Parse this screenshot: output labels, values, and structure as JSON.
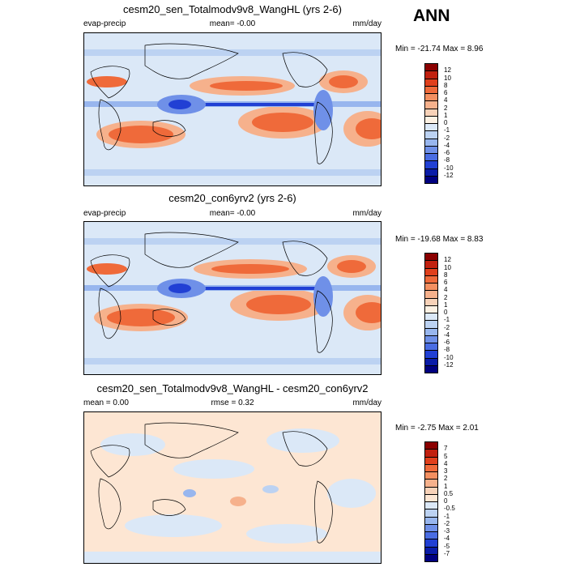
{
  "season": "ANN",
  "panels": [
    {
      "title": "cesm20_sen_Totalmodv9v8_WangHL (yrs 2-6)",
      "left_label": "evap-precip",
      "stat_label": "mean=  -0.00",
      "units": "mm/day",
      "minmax": "Min = -21.74 Max =  8.96",
      "colorbar": {
        "labels": [
          "12",
          "10",
          "8",
          "6",
          "4",
          "2",
          "1",
          "0",
          "-1",
          "-2",
          "-4",
          "-6",
          "-8",
          "-10",
          "-12"
        ],
        "colors": [
          "#8b0000",
          "#c1200f",
          "#e0401c",
          "#ef6a3a",
          "#f38f60",
          "#f6b18c",
          "#f8d2b8",
          "#fdf1e3",
          "#dbe8f7",
          "#bcd2f2",
          "#98b6ee",
          "#6f90e8",
          "#4a6de3",
          "#2140d4",
          "#0a1ca8",
          "#000080"
        ]
      }
    },
    {
      "title": "cesm20_con6yrv2 (yrs 2-6)",
      "left_label": "evap-precip",
      "stat_label": "mean=  -0.00",
      "units": "mm/day",
      "minmax": "Min = -19.68 Max =  8.83",
      "colorbar": {
        "labels": [
          "12",
          "10",
          "8",
          "6",
          "4",
          "2",
          "1",
          "0",
          "-1",
          "-2",
          "-4",
          "-6",
          "-8",
          "-10",
          "-12"
        ],
        "colors": [
          "#8b0000",
          "#c1200f",
          "#e0401c",
          "#ef6a3a",
          "#f38f60",
          "#f6b18c",
          "#f8d2b8",
          "#fdf1e3",
          "#dbe8f7",
          "#bcd2f2",
          "#98b6ee",
          "#6f90e8",
          "#4a6de3",
          "#2140d4",
          "#0a1ca8",
          "#000080"
        ]
      }
    },
    {
      "title": "cesm20_sen_Totalmodv9v8_WangHL - cesm20_con6yrv2",
      "left_label": "mean =  0.00",
      "stat_label": "rmse =  0.32",
      "units": "mm/day",
      "minmax": "Min = -2.75 Max =  2.01",
      "colorbar": {
        "labels": [
          "7",
          "5",
          "4",
          "3",
          "2",
          "1",
          "0.5",
          "0",
          "-0.5",
          "-1",
          "-2",
          "-3",
          "-4",
          "-5",
          "-7"
        ],
        "colors": [
          "#8b0000",
          "#c1200f",
          "#e0401c",
          "#ef6a3a",
          "#f38f60",
          "#f6b18c",
          "#f8d2b8",
          "#fde6d3",
          "#dbe8f7",
          "#bcd2f2",
          "#98b6ee",
          "#6f90e8",
          "#4a6de3",
          "#2140d4",
          "#0a1ca8",
          "#000080"
        ]
      }
    }
  ]
}
